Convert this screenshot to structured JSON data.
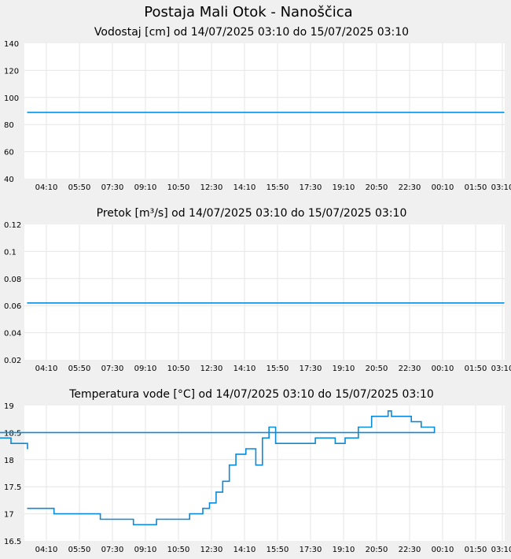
{
  "title": "Postaja Mali Otok - Nanoščica",
  "colors": {
    "background": "#f0f0f0",
    "plot_background": "#ffffff",
    "grid": "#e6e6e6",
    "line": "#0a8ad8"
  },
  "chart_data": [
    {
      "type": "line",
      "title": "Vodostaj [cm] od 14/07/2025 03:10 do 15/07/2025 03:10",
      "x_tick_labels": [
        "04:10",
        "05:50",
        "07:30",
        "09:10",
        "10:50",
        "12:30",
        "14:10",
        "15:50",
        "17:30",
        "19:10",
        "20:50",
        "22:30",
        "00:10",
        "01:50",
        "03:10"
      ],
      "y_tick_labels": [
        "140",
        "120",
        "100",
        "80",
        "60",
        "40"
      ],
      "ylim": [
        40,
        140
      ],
      "grid": true,
      "x": [
        "03:10",
        "03:10 (+1d)"
      ],
      "values": [
        89,
        89
      ]
    },
    {
      "type": "line",
      "title": "Pretok [m³/s] od 14/07/2025 03:10 do 15/07/2025 03:10",
      "x_tick_labels": [
        "04:10",
        "05:50",
        "07:30",
        "09:10",
        "10:50",
        "12:30",
        "14:10",
        "15:50",
        "17:30",
        "19:10",
        "20:50",
        "22:30",
        "00:10",
        "01:50",
        "03:10"
      ],
      "y_tick_labels": [
        "0.12",
        "0.1",
        "0.08",
        "0.06",
        "0.04",
        "0.02"
      ],
      "ylim": [
        0.02,
        0.12
      ],
      "grid": true,
      "x": [
        "03:10",
        "03:10 (+1d)"
      ],
      "values": [
        0.062,
        0.062
      ]
    },
    {
      "type": "line",
      "title": "Temperatura vode [°C] od 14/07/2025 03:10 do 15/07/2025 03:10",
      "x_tick_labels": [
        "04:10",
        "05:50",
        "07:30",
        "09:10",
        "10:50",
        "12:30",
        "14:10",
        "15:50",
        "17:30",
        "19:10",
        "20:50",
        "22:30",
        "00:10",
        "01:50",
        "03:10"
      ],
      "y_tick_labels": [
        "19",
        "18.5",
        "18",
        "17.5",
        "17",
        "16.5"
      ],
      "ylim": [
        16.5,
        19
      ],
      "grid": true,
      "x": [
        "03:10",
        "03:50",
        "04:30",
        "05:50",
        "06:50",
        "07:10",
        "08:30",
        "08:50",
        "09:40",
        "10:10",
        "11:20",
        "11:40",
        "12:00",
        "12:20",
        "12:40",
        "13:00",
        "13:20",
        "13:40",
        "14:00",
        "14:10",
        "14:30",
        "14:40",
        "15:00",
        "15:20",
        "15:40",
        "17:30",
        "17:40",
        "18:20",
        "18:40",
        "19:10",
        "19:50",
        "20:30",
        "20:50",
        "21:20",
        "21:30",
        "21:40",
        "22:30",
        "22:50",
        "23:00",
        "23:20",
        "23:40",
        "01:00",
        "01:30",
        "02:00",
        "02:20",
        "03:00",
        "03:10"
      ],
      "values": [
        17.1,
        17.1,
        17.0,
        17.0,
        16.9,
        16.9,
        16.8,
        16.8,
        16.9,
        16.9,
        17.0,
        17.0,
        17.1,
        17.2,
        17.4,
        17.6,
        17.9,
        18.1,
        18.1,
        18.2,
        18.2,
        17.9,
        18.4,
        18.6,
        18.3,
        18.3,
        18.4,
        18.4,
        18.3,
        18.4,
        18.6,
        18.8,
        18.8,
        18.9,
        18.8,
        18.8,
        18.7,
        18.7,
        18.6,
        18.6,
        18.5,
        18.5,
        18.4,
        18.4,
        18.3,
        18.3,
        18.2
      ]
    }
  ]
}
